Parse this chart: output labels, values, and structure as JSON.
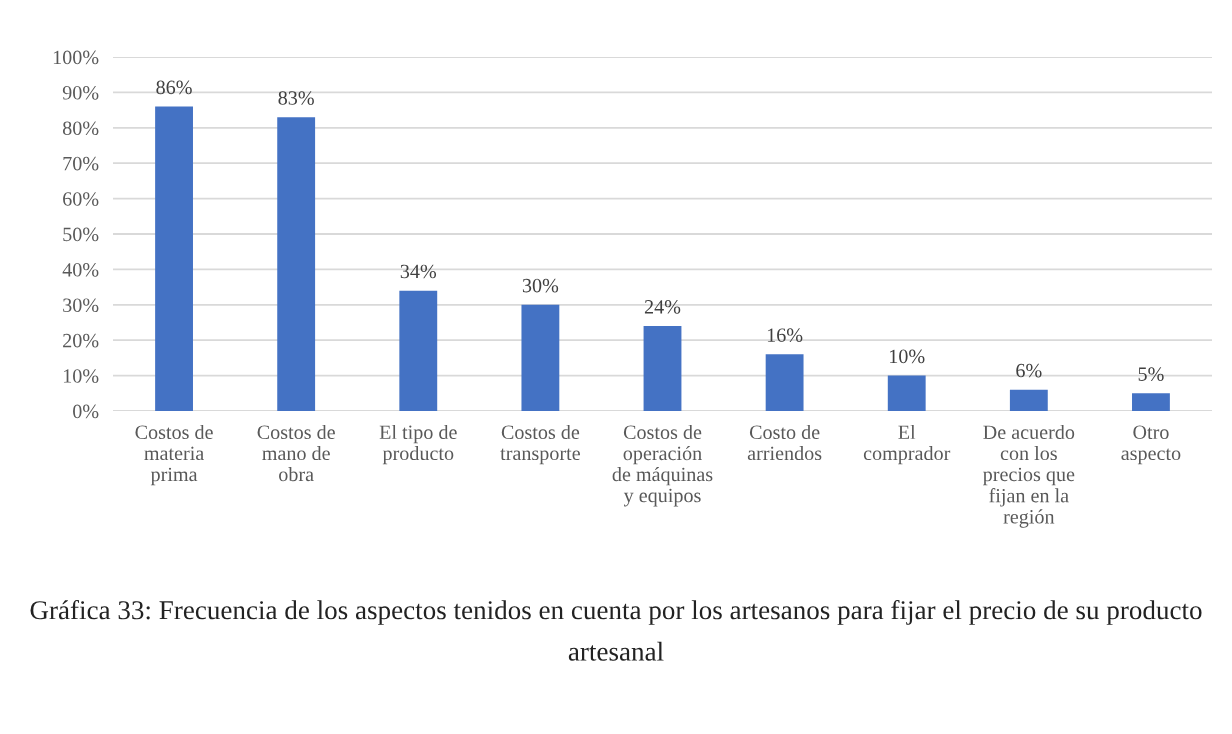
{
  "chart_data": {
    "type": "bar",
    "title": "Gráfica 33: Frecuencia de los aspectos tenidos en cuenta por los artesanos para fijar el precio de su producto artesanal",
    "categories": [
      "Costos de materia prima",
      "Costos de mano de obra",
      "El tipo de producto",
      "Costos de transporte",
      "Costos de operación de máquinas y equipos",
      "Costo de arriendos",
      "El comprador",
      "De acuerdo con los precios que fijan en la región",
      "Otro aspecto"
    ],
    "values": [
      86,
      83,
      34,
      30,
      24,
      16,
      10,
      6,
      5
    ],
    "value_labels": [
      "86%",
      "83%",
      "34%",
      "30%",
      "24%",
      "16%",
      "10%",
      "6%",
      "5%"
    ],
    "color": "#4472c4",
    "ylim": [
      0,
      100
    ],
    "yticks": [
      {
        "value": 0,
        "label": "0%"
      },
      {
        "value": 10,
        "label": "10%"
      },
      {
        "value": 20,
        "label": "20%"
      },
      {
        "value": 30,
        "label": "30%"
      },
      {
        "value": 40,
        "label": "40%"
      },
      {
        "value": 50,
        "label": "50%"
      },
      {
        "value": 60,
        "label": "60%"
      },
      {
        "value": 70,
        "label": "70%"
      },
      {
        "value": 80,
        "label": "80%"
      },
      {
        "value": 90,
        "label": "90%"
      },
      {
        "value": 100,
        "label": "100%"
      }
    ],
    "grid": "y",
    "legend": false
  }
}
